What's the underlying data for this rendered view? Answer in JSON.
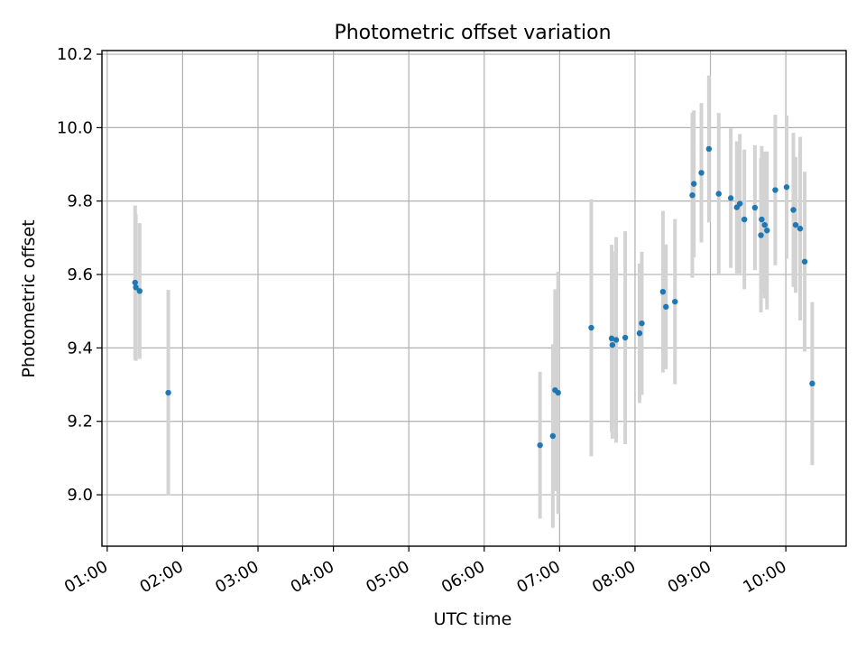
{
  "chart_data": {
    "type": "scatter",
    "title": "Photometric offset variation",
    "xlabel": "UTC time",
    "ylabel": "Photometric offset",
    "grid": true,
    "xlim": [
      0.93,
      10.8
    ],
    "ylim": [
      8.86,
      10.21
    ],
    "x_ticks": [
      {
        "value": 1,
        "label": "01:00"
      },
      {
        "value": 2,
        "label": "02:00"
      },
      {
        "value": 3,
        "label": "03:00"
      },
      {
        "value": 4,
        "label": "04:00"
      },
      {
        "value": 5,
        "label": "05:00"
      },
      {
        "value": 6,
        "label": "06:00"
      },
      {
        "value": 7,
        "label": "07:00"
      },
      {
        "value": 8,
        "label": "08:00"
      },
      {
        "value": 9,
        "label": "09:00"
      },
      {
        "value": 10,
        "label": "10:00"
      }
    ],
    "y_ticks": [
      {
        "value": 9.0,
        "label": "9.0"
      },
      {
        "value": 9.2,
        "label": "9.2"
      },
      {
        "value": 9.4,
        "label": "9.4"
      },
      {
        "value": 9.6,
        "label": "9.6"
      },
      {
        "value": 9.8,
        "label": "9.8"
      },
      {
        "value": 10.0,
        "label": "10.0"
      },
      {
        "value": 10.2,
        "label": "10.2"
      }
    ],
    "series": [
      {
        "name": "Photometric offset",
        "color": "#1f77b4",
        "errorbar_color": "#d3d3d3",
        "points": [
          {
            "x": 1.37,
            "y": 9.578,
            "err": 0.21
          },
          {
            "x": 1.38,
            "y": 9.565,
            "err": 0.2
          },
          {
            "x": 1.43,
            "y": 9.555,
            "err": 0.185
          },
          {
            "x": 1.81,
            "y": 9.278,
            "err": 0.28
          },
          {
            "x": 6.74,
            "y": 9.135,
            "err": 0.2
          },
          {
            "x": 6.91,
            "y": 9.16,
            "err": 0.25
          },
          {
            "x": 6.94,
            "y": 9.285,
            "err": 0.275
          },
          {
            "x": 6.98,
            "y": 9.278,
            "err": 0.33
          },
          {
            "x": 7.42,
            "y": 9.455,
            "err": 0.35
          },
          {
            "x": 7.69,
            "y": 9.426,
            "err": 0.255
          },
          {
            "x": 7.7,
            "y": 9.408,
            "err": 0.255
          },
          {
            "x": 7.75,
            "y": 9.422,
            "err": 0.28
          },
          {
            "x": 7.87,
            "y": 9.428,
            "err": 0.29
          },
          {
            "x": 8.06,
            "y": 9.44,
            "err": 0.19
          },
          {
            "x": 8.09,
            "y": 9.467,
            "err": 0.195
          },
          {
            "x": 8.37,
            "y": 9.553,
            "err": 0.22
          },
          {
            "x": 8.41,
            "y": 9.512,
            "err": 0.17
          },
          {
            "x": 8.53,
            "y": 9.526,
            "err": 0.225
          },
          {
            "x": 8.76,
            "y": 9.816,
            "err": 0.225
          },
          {
            "x": 8.78,
            "y": 9.847,
            "err": 0.2
          },
          {
            "x": 8.88,
            "y": 9.877,
            "err": 0.19
          },
          {
            "x": 8.98,
            "y": 9.942,
            "err": 0.2
          },
          {
            "x": 9.11,
            "y": 9.82,
            "err": 0.22
          },
          {
            "x": 9.27,
            "y": 9.808,
            "err": 0.19
          },
          {
            "x": 9.35,
            "y": 9.783,
            "err": 0.18
          },
          {
            "x": 9.39,
            "y": 9.793,
            "err": 0.19
          },
          {
            "x": 9.45,
            "y": 9.75,
            "err": 0.19
          },
          {
            "x": 9.59,
            "y": 9.782,
            "err": 0.17
          },
          {
            "x": 9.67,
            "y": 9.707,
            "err": 0.21
          },
          {
            "x": 9.68,
            "y": 9.75,
            "err": 0.2
          },
          {
            "x": 9.72,
            "y": 9.735,
            "err": 0.2
          },
          {
            "x": 9.75,
            "y": 9.72,
            "err": 0.215
          },
          {
            "x": 9.86,
            "y": 9.83,
            "err": 0.205
          },
          {
            "x": 10.01,
            "y": 9.838,
            "err": 0.195
          },
          {
            "x": 10.1,
            "y": 9.776,
            "err": 0.21
          },
          {
            "x": 10.13,
            "y": 9.735,
            "err": 0.185
          },
          {
            "x": 10.19,
            "y": 9.725,
            "err": 0.25
          },
          {
            "x": 10.25,
            "y": 9.635,
            "err": 0.245
          },
          {
            "x": 10.35,
            "y": 9.303,
            "err": 0.222
          }
        ]
      }
    ]
  }
}
